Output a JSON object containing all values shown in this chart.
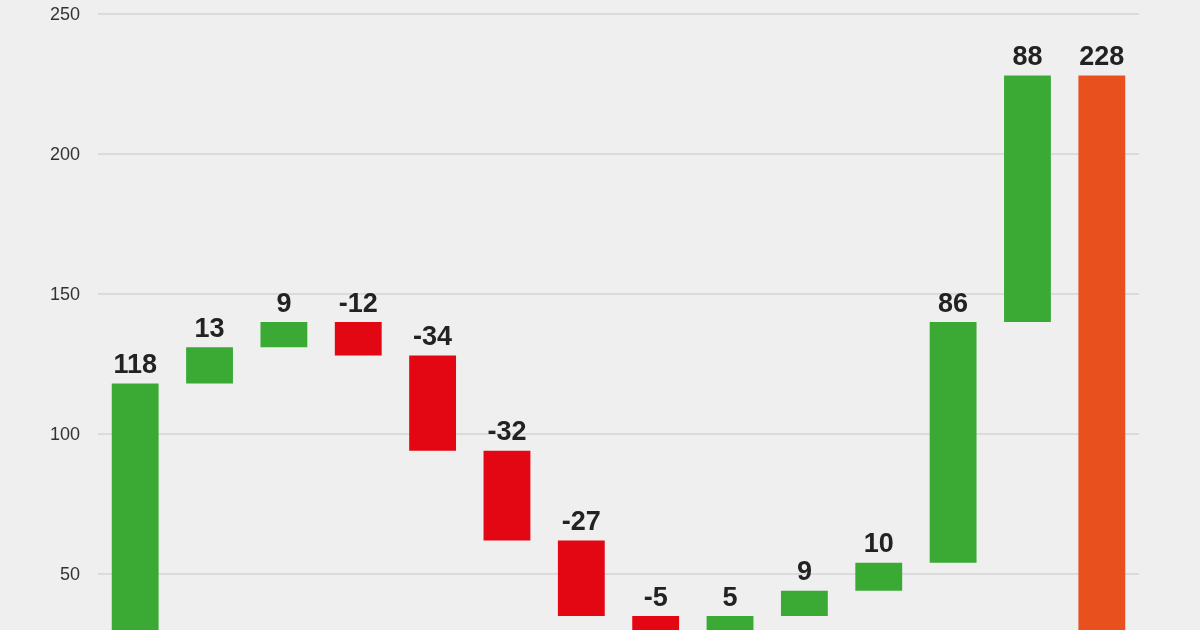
{
  "chart_data": {
    "type": "bar",
    "categories": [
      null,
      null,
      null,
      null,
      null,
      null,
      null,
      null,
      null,
      null,
      null,
      null,
      null,
      null
    ],
    "values": [
      118,
      13,
      9,
      -12,
      -34,
      -32,
      -27,
      -5,
      5,
      9,
      10,
      86,
      88,
      228
    ],
    "base": [
      0,
      118,
      131,
      140,
      128,
      94,
      62,
      35,
      30,
      35,
      44,
      54,
      140,
      0
    ],
    "colors": [
      "#3aaa35",
      "#3aaa35",
      "#3aaa35",
      "#e30613",
      "#e30613",
      "#e30613",
      "#e30613",
      "#e30613",
      "#3aaa35",
      "#3aaa35",
      "#3aaa35",
      "#3aaa35",
      "#3aaa35",
      "#e8501e"
    ],
    "ylim": [
      30,
      255
    ],
    "yticks": [
      50,
      100,
      150,
      200,
      250
    ],
    "grid": "y",
    "data_labels": true,
    "tick_labels": "y"
  }
}
